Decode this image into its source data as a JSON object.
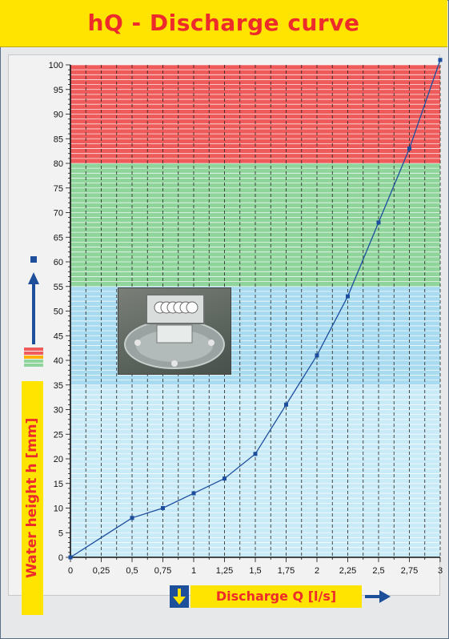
{
  "title": "hQ - Discharge curve",
  "chart_data": {
    "type": "line",
    "title": "hQ - Discharge curve",
    "xlabel": "Discharge Q [l/s]",
    "ylabel": "Water height h [mm]",
    "xlim": [
      0,
      3
    ],
    "ylim": [
      0,
      100
    ],
    "x_ticks": [
      "0",
      "0,25",
      "0,5",
      "0,75",
      "1",
      "1,25",
      "1,5",
      "1,75",
      "2",
      "2,25",
      "2,5",
      "2,75",
      "3"
    ],
    "y_ticks": [
      "0",
      "5",
      "10",
      "15",
      "20",
      "25",
      "30",
      "35",
      "40",
      "45",
      "50",
      "55",
      "60",
      "65",
      "70",
      "75",
      "80",
      "85",
      "90",
      "95",
      "100"
    ],
    "x": [
      0,
      0.5,
      0.75,
      1,
      1.25,
      1.5,
      1.75,
      2,
      2.25,
      2.5,
      2.75,
      3
    ],
    "y": [
      0,
      8,
      10,
      13,
      16,
      21,
      31,
      41,
      53,
      68,
      83,
      101
    ],
    "bands": [
      {
        "from": 0,
        "to": 35,
        "color": "#c9eaf7"
      },
      {
        "from": 35,
        "to": 55,
        "color": "#a9dbf0"
      },
      {
        "from": 55,
        "to": 80,
        "color": "#8fd49a"
      },
      {
        "from": 80,
        "to": 100,
        "color": "#ef5a5a"
      }
    ],
    "line_color": "#1e4f9e",
    "grid": true
  },
  "colors": {
    "title_bg": "#ffe400",
    "title_text": "#ee2b2b",
    "accent_blue": "#1d4f9b"
  },
  "icons": {
    "y_arrow": "up-arrow-icon",
    "x_arrow": "right-arrow-icon",
    "down_arrow": "down-arrow-icon"
  }
}
